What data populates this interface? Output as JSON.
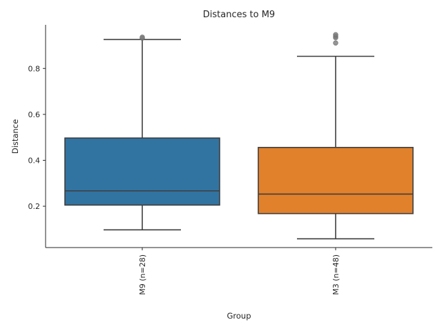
{
  "chart_data": {
    "type": "box",
    "title": "Distances to M9",
    "xlabel": "Group",
    "ylabel": "Distance",
    "ylim": [
      0.02,
      0.99
    ],
    "yticks": [
      "0.2",
      "0.4",
      "0.6",
      "0.8"
    ],
    "grid": false,
    "categories": [
      "M9 (n=28)",
      "M3 (n=48)"
    ],
    "series": [
      {
        "category": "M9 (n=28)",
        "color": "#3274a1",
        "whisker_low": 0.097,
        "q1": 0.205,
        "median": 0.267,
        "q3": 0.497,
        "whisker_high": 0.926,
        "outliers": [
          0.932,
          0.936
        ]
      },
      {
        "category": "M3 (n=48)",
        "color": "#e1812c",
        "whisker_low": 0.058,
        "q1": 0.168,
        "median": 0.253,
        "q3": 0.456,
        "whisker_high": 0.853,
        "outliers": [
          0.911,
          0.934,
          0.94,
          0.947
        ]
      }
    ]
  }
}
